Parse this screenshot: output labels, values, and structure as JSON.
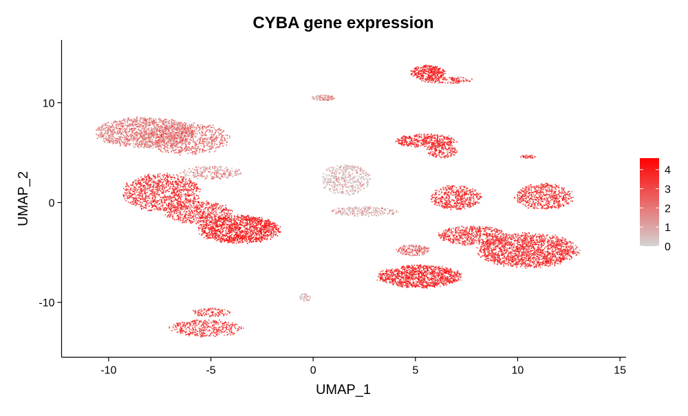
{
  "chart_data": {
    "type": "scatter",
    "title": "CYBA gene expression",
    "xlabel": "UMAP_1",
    "ylabel": "UMAP_2",
    "xlim": [
      -12.3,
      15.3
    ],
    "ylim": [
      -15.5,
      16.3
    ],
    "x_ticks": [
      -10,
      -5,
      0,
      5,
      10,
      15
    ],
    "y_ticks": [
      -10,
      0,
      10
    ],
    "x_tick_labels": [
      "-10",
      "-5",
      "0",
      "5",
      "10",
      "15"
    ],
    "y_tick_labels": [
      "-10",
      "0",
      "10"
    ],
    "grid": false,
    "color_scale": {
      "low_color": "#d3d3d3",
      "high_color": "#ff0000",
      "min": 0,
      "max": 4.6,
      "ticks": [
        0,
        1,
        2,
        3,
        4
      ],
      "tick_labels": [
        "0",
        "1",
        "2",
        "3",
        "4"
      ],
      "position": "right"
    },
    "clusters": [
      {
        "cx": -8.2,
        "cy": 7.0,
        "rx": 2.6,
        "ry": 1.6,
        "n": 1500,
        "expr": 1.6
      },
      {
        "cx": -6.2,
        "cy": 6.4,
        "rx": 2.2,
        "ry": 1.7,
        "n": 900,
        "expr": 1.9
      },
      {
        "cx": -7.4,
        "cy": 1.0,
        "rx": 2.0,
        "ry": 2.0,
        "n": 1100,
        "expr": 3.3
      },
      {
        "cx": -5.6,
        "cy": -1.0,
        "rx": 1.8,
        "ry": 1.2,
        "n": 600,
        "expr": 3.1
      },
      {
        "cx": -3.6,
        "cy": -2.7,
        "rx": 2.1,
        "ry": 1.5,
        "n": 1400,
        "expr": 3.7
      },
      {
        "cx": -5.0,
        "cy": 3.0,
        "rx": 1.6,
        "ry": 0.7,
        "n": 260,
        "expr": 1.2
      },
      {
        "cx": -5.2,
        "cy": -12.6,
        "rx": 1.9,
        "ry": 0.9,
        "n": 420,
        "expr": 3.1
      },
      {
        "cx": -5.0,
        "cy": -11.0,
        "rx": 1.0,
        "ry": 0.5,
        "n": 120,
        "expr": 2.8
      },
      {
        "cx": 0.5,
        "cy": 10.5,
        "rx": 0.6,
        "ry": 0.3,
        "n": 120,
        "expr": 1.2
      },
      {
        "cx": 1.6,
        "cy": 2.3,
        "rx": 1.3,
        "ry": 1.6,
        "n": 500,
        "expr": 0.5
      },
      {
        "cx": 2.5,
        "cy": -0.9,
        "rx": 1.8,
        "ry": 0.5,
        "n": 260,
        "expr": 0.7
      },
      {
        "cx": -0.4,
        "cy": -9.5,
        "rx": 0.3,
        "ry": 0.4,
        "n": 50,
        "expr": 0.3
      },
      {
        "cx": 5.6,
        "cy": 13.0,
        "rx": 0.9,
        "ry": 0.8,
        "n": 340,
        "expr": 3.6
      },
      {
        "cx": 6.5,
        "cy": 12.3,
        "rx": 1.4,
        "ry": 0.4,
        "n": 140,
        "expr": 3.2
      },
      {
        "cx": 5.5,
        "cy": 6.2,
        "rx": 1.6,
        "ry": 0.7,
        "n": 400,
        "expr": 3.5
      },
      {
        "cx": 6.3,
        "cy": 5.2,
        "rx": 0.8,
        "ry": 0.8,
        "n": 200,
        "expr": 3.3
      },
      {
        "cx": 7.0,
        "cy": 0.5,
        "rx": 1.3,
        "ry": 1.3,
        "n": 520,
        "expr": 3.2
      },
      {
        "cx": 11.3,
        "cy": 0.6,
        "rx": 1.5,
        "ry": 1.4,
        "n": 620,
        "expr": 3.2
      },
      {
        "cx": 10.5,
        "cy": -4.8,
        "rx": 2.6,
        "ry": 1.8,
        "n": 1700,
        "expr": 3.4
      },
      {
        "cx": 7.8,
        "cy": -3.3,
        "rx": 1.8,
        "ry": 1.0,
        "n": 600,
        "expr": 3.1
      },
      {
        "cx": 5.2,
        "cy": -7.4,
        "rx": 2.2,
        "ry": 1.2,
        "n": 1200,
        "expr": 3.5
      },
      {
        "cx": 4.9,
        "cy": -4.8,
        "rx": 0.9,
        "ry": 0.6,
        "n": 200,
        "expr": 2.0
      },
      {
        "cx": 10.5,
        "cy": 4.6,
        "rx": 0.4,
        "ry": 0.2,
        "n": 40,
        "expr": 3.0
      }
    ]
  }
}
